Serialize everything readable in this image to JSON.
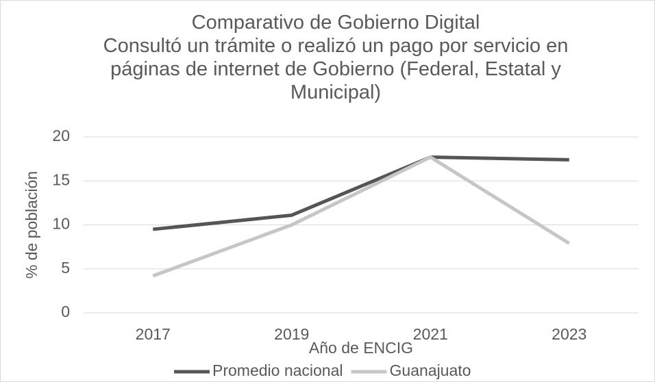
{
  "chart_data": {
    "type": "line",
    "title": "Comparativo de Gobierno Digital",
    "subtitle": "Consultó un trámite o realizó un pago por servicio en páginas de internet de Gobierno (Federal, Estatal y Municipal)",
    "xlabel": "Año de ENCIG",
    "ylabel": "% de población",
    "categories": [
      "2017",
      "2019",
      "2021",
      "2023"
    ],
    "series": [
      {
        "name": "Promedio nacional",
        "color": "#555555",
        "values": [
          9.5,
          11.1,
          17.7,
          17.4
        ]
      },
      {
        "name": "Guanajuato",
        "color": "#c6c6c6",
        "values": [
          4.2,
          10.0,
          17.7,
          7.9
        ]
      }
    ],
    "ylim": [
      0,
      20
    ],
    "yticks": [
      0,
      5,
      10,
      15,
      20
    ],
    "grid": true,
    "legend": "bottom"
  }
}
